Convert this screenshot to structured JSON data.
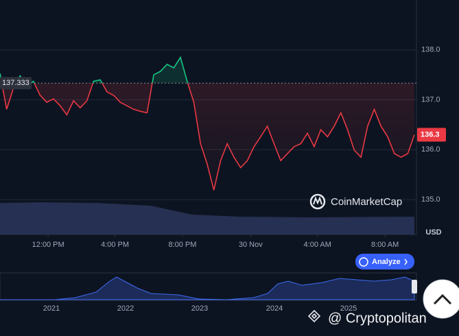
{
  "chart_data": {
    "type": "line",
    "values": [
      137.53,
      136.81,
      137.23,
      137.48,
      137.3,
      137.37,
      137.09,
      136.95,
      137.02,
      136.88,
      136.7,
      136.98,
      136.84,
      136.98,
      137.37,
      137.4,
      137.16,
      137.09,
      136.95,
      136.88,
      136.81,
      136.77,
      136.74,
      137.5,
      137.57,
      137.71,
      137.64,
      137.85,
      137.37,
      136.95,
      136.12,
      135.71,
      135.19,
      135.78,
      136.12,
      135.85,
      135.64,
      135.78,
      136.06,
      136.26,
      136.47,
      136.12,
      135.78,
      135.92,
      136.06,
      136.12,
      136.33,
      136.06,
      136.4,
      136.26,
      136.47,
      136.74,
      136.4,
      135.99,
      135.85,
      136.47,
      136.81,
      136.47,
      136.26,
      135.92,
      135.85,
      135.92,
      136.3
    ],
    "baseline": 137.333,
    "up_color": "#16c784",
    "down_color": "#ea3943",
    "ylim": [
      134.3,
      139.0
    ],
    "yticks": [
      {
        "value": 138,
        "label": "138.0"
      },
      {
        "value": 137,
        "label": "137.0"
      },
      {
        "value": 136,
        "label": "136.0"
      },
      {
        "value": 135,
        "label": "135.0"
      }
    ],
    "y_unit": "USD",
    "xlim": [
      0,
      62
    ],
    "xticks": [
      {
        "value": 7.2,
        "label": "12:00 PM"
      },
      {
        "value": 17.2,
        "label": "4:00 PM"
      },
      {
        "value": 27.3,
        "label": "8:00 PM"
      },
      {
        "value": 37.5,
        "label": "30 Nov"
      },
      {
        "value": 47.5,
        "label": "4:00 AM"
      },
      {
        "value": 57.6,
        "label": "8:00 AM"
      }
    ],
    "grid": true
  },
  "navigator": {
    "labels": [
      "2021",
      "2022",
      "2023",
      "2024",
      "2025"
    ]
  },
  "brand": "CoinMarketCap",
  "button": "Analyze",
  "watermark": "@ Cryptopolitan"
}
